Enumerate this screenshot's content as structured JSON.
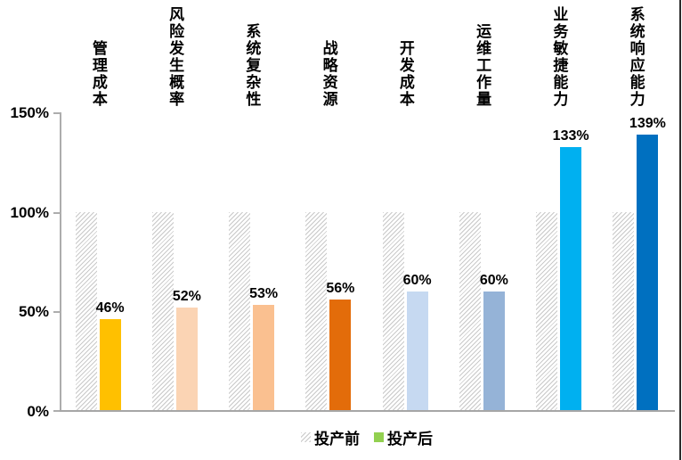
{
  "chart_data": {
    "type": "bar",
    "title": "",
    "xlabel": "",
    "ylabel": "",
    "grid": "off",
    "legend_position": "bottom-center",
    "ylim": [
      0,
      150
    ],
    "yticks": [
      "150%",
      "100%",
      "50%",
      "0%"
    ],
    "categories": [
      "管理成本",
      "风险发生概率",
      "系统复杂性",
      "战略资源",
      "开发成本",
      "运维工作量",
      "业务敏捷能力",
      "系统响应能力"
    ],
    "series": [
      {
        "name": "投产前",
        "values": [
          100,
          100,
          100,
          100,
          100,
          100,
          100,
          100
        ],
        "style": "hatched",
        "hatch_color": "#c9c9c9"
      },
      {
        "name": "投产后",
        "values": [
          46,
          52,
          53,
          56,
          60,
          60,
          133,
          139
        ],
        "colors": [
          "#FFC000",
          "#FBD4B4",
          "#FAC090",
          "#E36C0A",
          "#C6D9F1",
          "#95B3D7",
          "#00B0F0",
          "#0070C0"
        ],
        "legend_swatch_color": "#92D050"
      }
    ],
    "value_labels": [
      "46%",
      "52%",
      "53%",
      "56%",
      "60%",
      "60%",
      "133%",
      "139%"
    ]
  }
}
